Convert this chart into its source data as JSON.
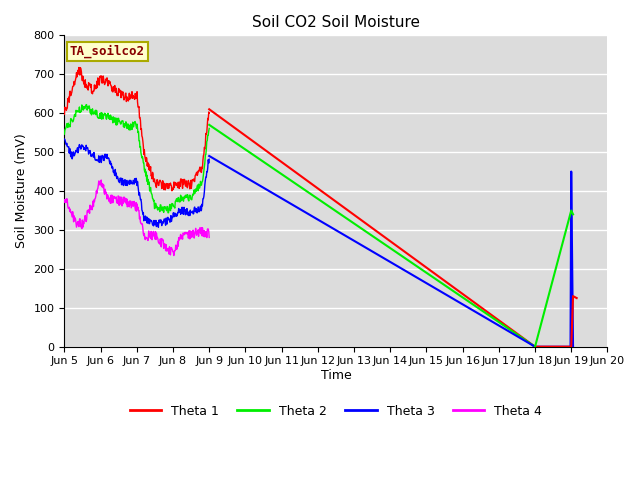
{
  "title": "Soil CO2 Soil Moisture",
  "ylabel": "Soil Moisture (mV)",
  "xlabel": "Time",
  "ylim": [
    0,
    800
  ],
  "annotation_text": "TA_soilco2",
  "colors": {
    "theta1": "#FF0000",
    "theta2": "#00EE00",
    "theta3": "#0000FF",
    "theta4": "#FF00FF"
  },
  "legend_labels": [
    "Theta 1",
    "Theta 2",
    "Theta 3",
    "Theta 4"
  ],
  "xtick_labels": [
    "Jun 5",
    "Jun 6",
    "Jun 7",
    "Jun 8",
    "Jun 9",
    "Jun 10",
    "Jun 11",
    "Jun 12",
    "Jun 13",
    "Jun 14",
    "Jun 15",
    "Jun 16",
    "Jun 17",
    "Jun 18",
    "Jun 19",
    "Jun 20"
  ],
  "background_color": "#DCDCDC",
  "grid_color": "#FFFFFF",
  "figsize": [
    6.4,
    4.8
  ],
  "dpi": 100
}
